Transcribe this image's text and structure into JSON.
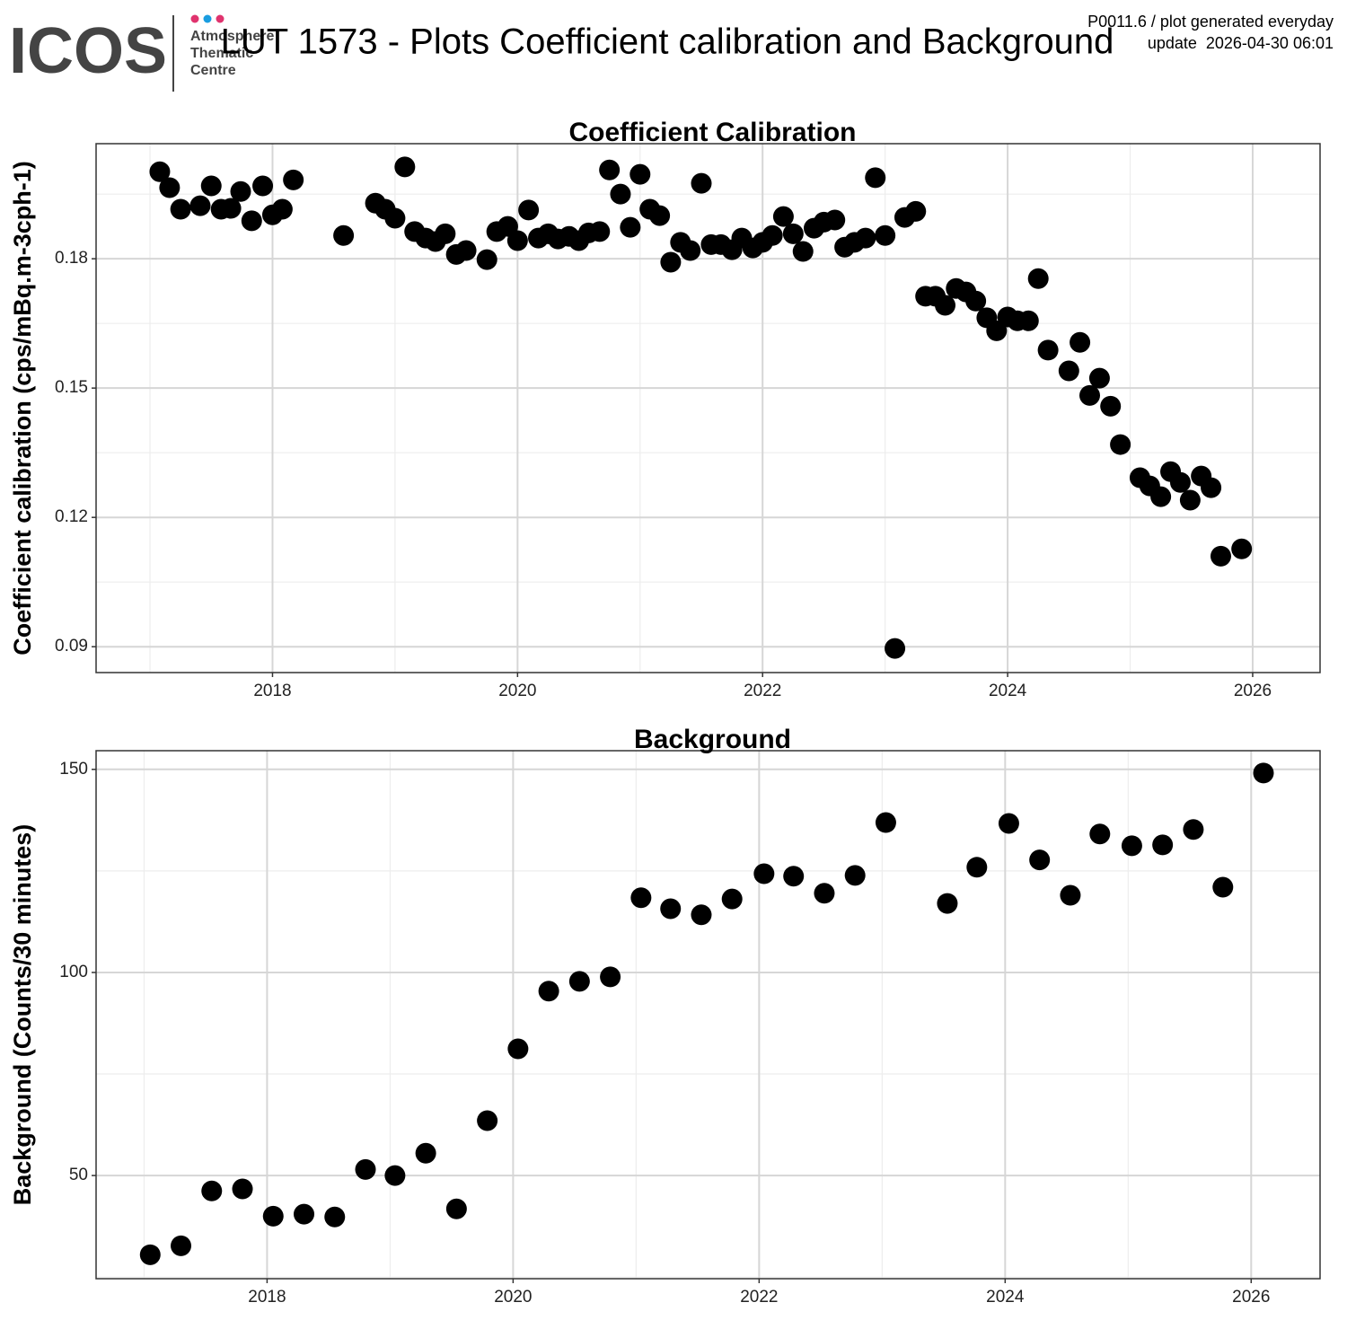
{
  "header": {
    "logo": "ICOS",
    "logo_lines": [
      "Atmosphere",
      "Thematic",
      "Centre"
    ],
    "title": "LUT 1573 - Plots Coefficient calibration and Background",
    "note": "P0011.6 / plot generated everyday",
    "update": "update  2026-04-30 06:01"
  },
  "chart_data": [
    {
      "type": "scatter",
      "title": "Coefficient Calibration",
      "y_label": "Coefficient calibration (cps/mBq.m-3cph-1)",
      "color": "#000000",
      "grid": true,
      "xlim": [
        2016.56,
        2026.55
      ],
      "xticks": [
        2018,
        2020,
        2022,
        2024,
        2026
      ],
      "ylim": [
        0.084,
        0.2067
      ],
      "yticks": [
        0.09,
        0.12,
        0.15,
        0.18
      ],
      "x": [
        2017.08,
        2017.16,
        2017.25,
        2017.41,
        2017.5,
        2017.58,
        2017.66,
        2017.74,
        2017.83,
        2017.92,
        2018.0,
        2018.08,
        2018.17,
        2018.58,
        2018.84,
        2018.92,
        2019.0,
        2019.08,
        2019.16,
        2019.25,
        2019.33,
        2019.41,
        2019.5,
        2019.58,
        2019.75,
        2019.83,
        2019.92,
        2020.0,
        2020.09,
        2020.17,
        2020.25,
        2020.33,
        2020.42,
        2020.5,
        2020.58,
        2020.67,
        2020.75,
        2020.84,
        2020.92,
        2021.0,
        2021.08,
        2021.16,
        2021.25,
        2021.33,
        2021.41,
        2021.5,
        2021.58,
        2021.66,
        2021.75,
        2021.83,
        2021.92,
        2022.0,
        2022.08,
        2022.17,
        2022.25,
        2022.33,
        2022.42,
        2022.5,
        2022.59,
        2022.67,
        2022.75,
        2022.84,
        2022.92,
        2023.0,
        2023.08,
        2023.16,
        2023.25,
        2023.33,
        2023.41,
        2023.49,
        2023.58,
        2023.66,
        2023.74,
        2023.83,
        2023.91,
        2024.0,
        2024.08,
        2024.17,
        2024.25,
        2024.33,
        2024.5,
        2024.59,
        2024.67,
        2024.75,
        2024.84,
        2024.92,
        2025.08,
        2025.16,
        2025.25,
        2025.33,
        2025.41,
        2025.49,
        2025.58,
        2025.66,
        2025.74,
        2025.91
      ],
      "values": [
        0.2002,
        0.1965,
        0.1915,
        0.1923,
        0.1969,
        0.1915,
        0.1917,
        0.1956,
        0.1888,
        0.1969,
        0.1902,
        0.1915,
        0.1983,
        0.1854,
        0.1929,
        0.1915,
        0.1894,
        0.2013,
        0.1863,
        0.1848,
        0.184,
        0.1858,
        0.181,
        0.1819,
        0.1798,
        0.1863,
        0.1875,
        0.1842,
        0.1913,
        0.1848,
        0.1858,
        0.1846,
        0.1852,
        0.1842,
        0.186,
        0.1863,
        0.2006,
        0.195,
        0.1873,
        0.1996,
        0.1915,
        0.19,
        0.1792,
        0.1838,
        0.1819,
        0.1975,
        0.1833,
        0.1833,
        0.1821,
        0.1848,
        0.1825,
        0.1838,
        0.1854,
        0.1898,
        0.1858,
        0.1817,
        0.1871,
        0.1885,
        0.189,
        0.1827,
        0.1838,
        0.1848,
        0.1988,
        0.1854,
        0.0896,
        0.1896,
        0.191,
        0.1713,
        0.1713,
        0.1692,
        0.1731,
        0.1723,
        0.1702,
        0.1663,
        0.1633,
        0.1665,
        0.1656,
        0.1656,
        0.1754,
        0.1588,
        0.154,
        0.1606,
        0.1483,
        0.1523,
        0.1458,
        0.1369,
        0.1292,
        0.1273,
        0.1248,
        0.1306,
        0.1281,
        0.124,
        0.1296,
        0.1269,
        0.111,
        0.1127
      ]
    },
    {
      "type": "scatter",
      "title": "Background",
      "y_label": "Background (Counts/30 minutes)",
      "color": "#000000",
      "grid": true,
      "xlim": [
        2016.61,
        2026.56
      ],
      "xticks": [
        2018,
        2020,
        2022,
        2024,
        2026
      ],
      "ylim": [
        24.6,
        154.6
      ],
      "yticks": [
        50,
        100,
        150
      ],
      "x": [
        2017.05,
        2017.3,
        2017.55,
        2017.8,
        2018.05,
        2018.3,
        2018.55,
        2018.8,
        2019.04,
        2019.29,
        2019.54,
        2019.79,
        2020.04,
        2020.29,
        2020.54,
        2020.79,
        2021.04,
        2021.28,
        2021.53,
        2021.78,
        2022.04,
        2022.28,
        2022.53,
        2022.78,
        2023.03,
        2023.53,
        2023.77,
        2024.03,
        2024.28,
        2024.53,
        2024.77,
        2025.03,
        2025.28,
        2025.53,
        2025.77,
        2026.1
      ],
      "values": [
        30.5,
        32.7,
        46.2,
        46.7,
        40.0,
        40.5,
        39.8,
        51.5,
        50.0,
        55.5,
        41.8,
        63.5,
        81.2,
        95.4,
        97.8,
        98.9,
        118.4,
        115.7,
        114.2,
        118.1,
        124.3,
        123.7,
        119.5,
        123.9,
        136.9,
        117.0,
        125.9,
        136.7,
        127.7,
        119.0,
        134.1,
        131.2,
        131.4,
        135.2,
        121.0,
        149.1
      ]
    }
  ]
}
